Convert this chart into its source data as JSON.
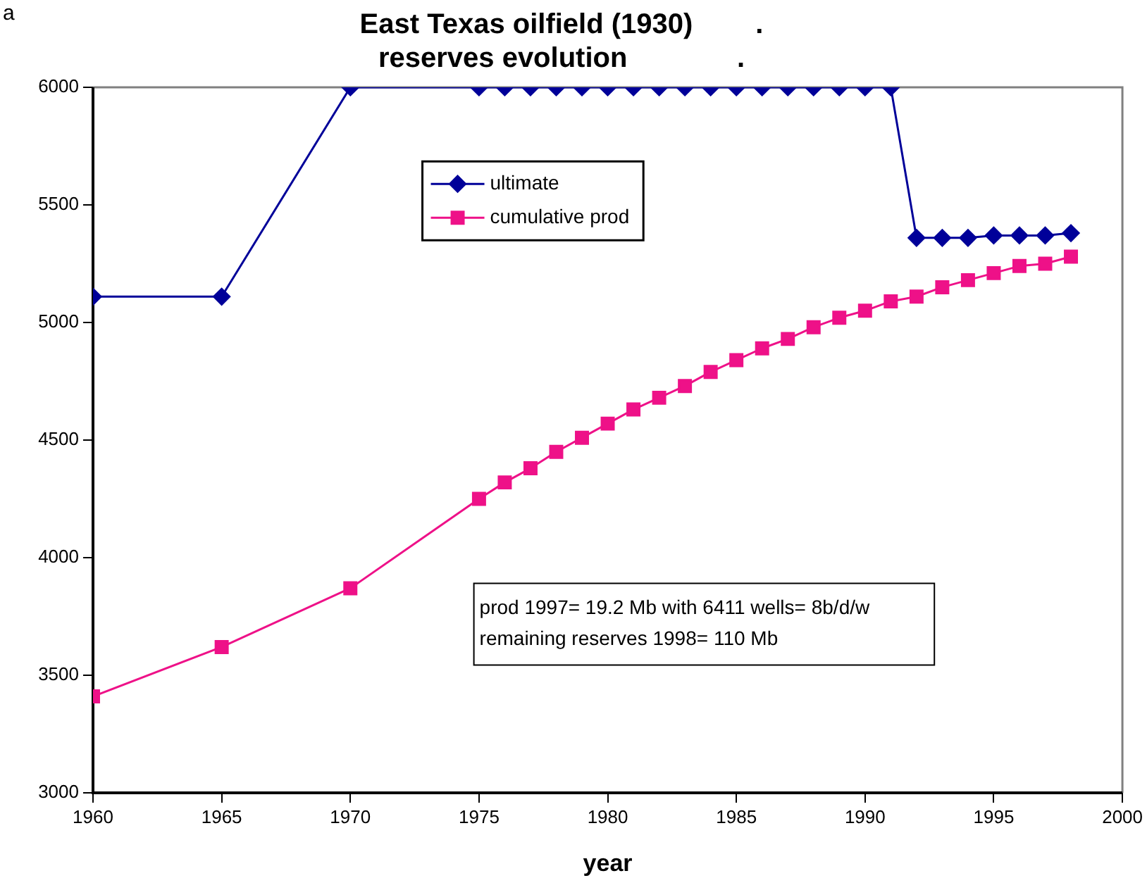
{
  "chart_data": {
    "type": "line",
    "title": [
      "East Texas oilfield (1930)        .",
      "reserves evolution              ."
    ],
    "xlabel": "year",
    "xlim": [
      1960,
      2000
    ],
    "xticks": [
      1960,
      1965,
      1970,
      1975,
      1980,
      1985,
      1990,
      1995,
      2000
    ],
    "ylim": [
      3000,
      6000
    ],
    "yticks": [
      3000,
      3500,
      4000,
      4500,
      5000,
      5500,
      6000
    ],
    "grid": false,
    "legend": "top",
    "line_style": "solid",
    "annotations": [
      "a",
      "prod 1997= 19.2 Mb with 6411 wells= 8b/d/w",
      "remaining reserves 1998= 110 Mb"
    ],
    "series": [
      {
        "name": "ultimate",
        "color": "#000099",
        "marker": "diamond",
        "x": [
          1960,
          1965,
          1970,
          1975,
          1976,
          1977,
          1978,
          1979,
          1980,
          1981,
          1982,
          1983,
          1984,
          1985,
          1986,
          1987,
          1988,
          1989,
          1990,
          1991,
          1992,
          1993,
          1994,
          1995,
          1996,
          1997,
          1998
        ],
        "values": [
          5110,
          5110,
          6000,
          6000,
          6000,
          6000,
          6000,
          6000,
          6000,
          6000,
          6000,
          6000,
          6000,
          6000,
          6000,
          6000,
          6000,
          6000,
          6000,
          6000,
          5360,
          5360,
          5360,
          5370,
          5370,
          5370,
          5380
        ]
      },
      {
        "name": "cumulative prod",
        "color": "#ee1188",
        "marker": "square",
        "x": [
          1960,
          1965,
          1970,
          1975,
          1976,
          1977,
          1978,
          1979,
          1980,
          1981,
          1982,
          1983,
          1984,
          1985,
          1986,
          1987,
          1988,
          1989,
          1990,
          1991,
          1992,
          1993,
          1994,
          1995,
          1996,
          1997,
          1998
        ],
        "values": [
          3410,
          3620,
          3870,
          4250,
          4320,
          4380,
          4450,
          4510,
          4570,
          4630,
          4680,
          4730,
          4790,
          4840,
          4890,
          4930,
          4980,
          5020,
          5050,
          5090,
          5110,
          5150,
          5180,
          5210,
          5240,
          5250,
          5280
        ]
      }
    ]
  }
}
